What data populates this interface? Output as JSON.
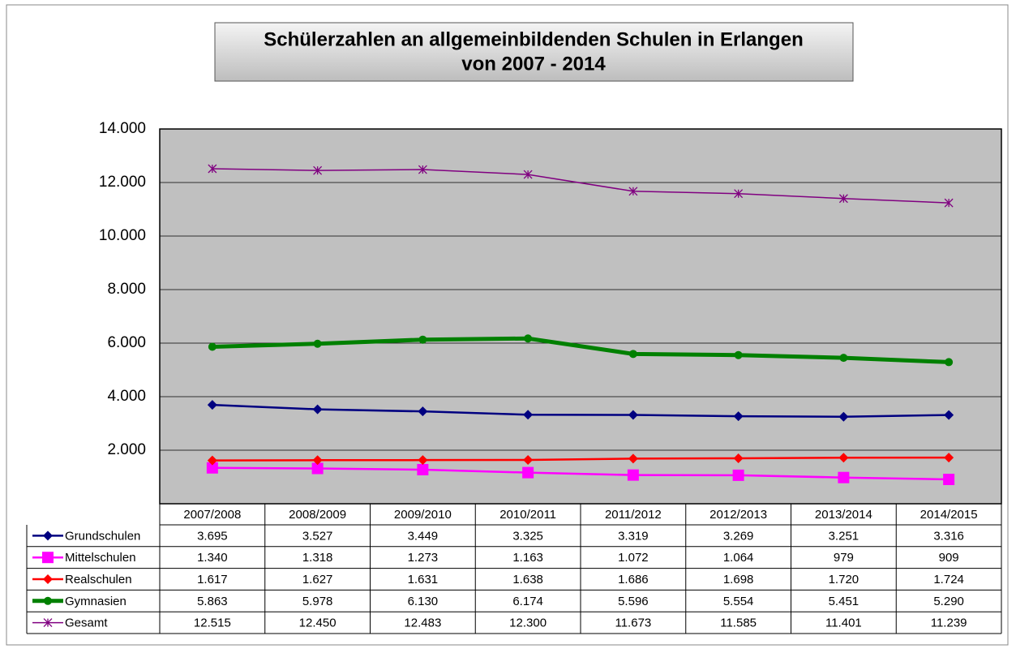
{
  "chart_data": {
    "type": "line",
    "title": "Schülerzahlen an allgemeinbildenden Schulen in Erlangen",
    "subtitle": "von 2007 - 2014",
    "categories": [
      "2007/2008",
      "2008/2009",
      "2009/2010",
      "2010/2011",
      "2011/2012",
      "2012/2013",
      "2013/2014",
      "2014/2015"
    ],
    "ylim": [
      0,
      14000
    ],
    "yticks": [
      {
        "value": 2000,
        "label": "2.000"
      },
      {
        "value": 4000,
        "label": "4.000"
      },
      {
        "value": 6000,
        "label": "6.000"
      },
      {
        "value": 8000,
        "label": "8.000"
      },
      {
        "value": 10000,
        "label": "10.000"
      },
      {
        "value": 12000,
        "label": "12.000"
      },
      {
        "value": 14000,
        "label": "14.000"
      }
    ],
    "grid": true,
    "plot_background": "#c0c0c0",
    "series": [
      {
        "name": "Grundschulen",
        "color": "#000080",
        "marker": "diamond",
        "width": 2.5,
        "values": [
          3695,
          3527,
          3449,
          3325,
          3319,
          3269,
          3251,
          3316
        ],
        "value_labels": [
          "3.695",
          "3.527",
          "3.449",
          "3.325",
          "3.319",
          "3.269",
          "3.251",
          "3.316"
        ]
      },
      {
        "name": "Mittelschulen",
        "color": "#ff00ff",
        "marker": "square",
        "width": 2.5,
        "values": [
          1340,
          1318,
          1273,
          1163,
          1072,
          1064,
          979,
          909
        ],
        "value_labels": [
          "1.340",
          "1.318",
          "1.273",
          "1.163",
          "1.072",
          "1.064",
          "979",
          "909"
        ]
      },
      {
        "name": "Realschulen",
        "color": "#ff0000",
        "marker": "diamond",
        "width": 2.5,
        "values": [
          1617,
          1627,
          1631,
          1638,
          1686,
          1698,
          1720,
          1724
        ],
        "value_labels": [
          "1.617",
          "1.627",
          "1.631",
          "1.638",
          "1.686",
          "1.698",
          "1.720",
          "1.724"
        ]
      },
      {
        "name": "Gymnasien",
        "color": "#008000",
        "marker": "circle",
        "width": 5,
        "values": [
          5863,
          5978,
          6130,
          6174,
          5596,
          5554,
          5451,
          5290
        ],
        "value_labels": [
          "5.863",
          "5.978",
          "6.130",
          "6.174",
          "5.596",
          "5.554",
          "5.451",
          "5.290"
        ]
      },
      {
        "name": "Gesamt",
        "color": "#800080",
        "marker": "star",
        "width": 1.5,
        "values": [
          12515,
          12450,
          12483,
          12300,
          11673,
          11585,
          11401,
          11239
        ],
        "value_labels": [
          "12.515",
          "12.450",
          "12.483",
          "12.300",
          "11.673",
          "11.585",
          "11.401",
          "11.239"
        ]
      }
    ]
  }
}
